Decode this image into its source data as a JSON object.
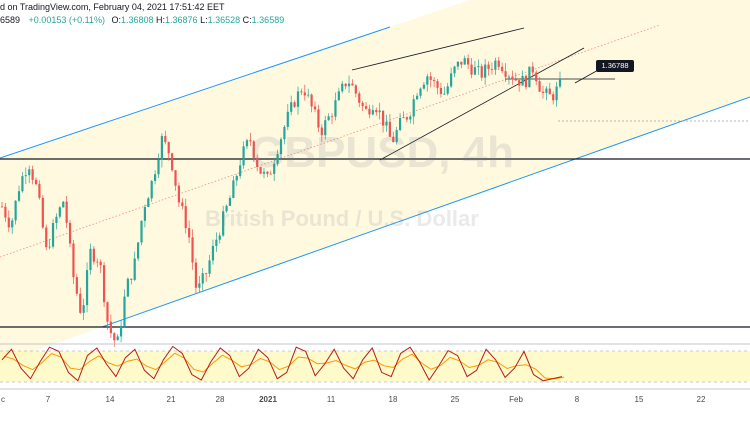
{
  "header": {
    "line1": "d on TradingView.com, February 04, 2021 17:51:42 EET",
    "price_prefix": "6589",
    "change": "+0.00153 (+0.11%)",
    "o_label": "O:",
    "o_value": "1.36808",
    "h_label": "H:",
    "h_value": "1.36876",
    "l_label": "L:",
    "l_value": "1.36528",
    "c_label": "C:",
    "c_value": "1.36589"
  },
  "watermark": {
    "symbol": "GBPUSD, 4h",
    "name": "British Pound / U.S. Dollar"
  },
  "annotations": {
    "price_label": "1.36788"
  },
  "colors": {
    "up_candle": "#26a69a",
    "down_candle": "#ef5350",
    "channel_line": "#2196f3",
    "channel_fill": "#fff9e0",
    "midline": "#f28b82",
    "stoch_band": "#fff59d",
    "stoch_k": "#b71c1c",
    "stoch_d": "#ff9800"
  },
  "chart_data": {
    "type": "candlestick",
    "x_ticks": [
      "c",
      "7",
      "14",
      "21",
      "28",
      "2021",
      "11",
      "18",
      "25",
      "Feb",
      "8",
      "15",
      "22"
    ],
    "price_path": [
      1.334,
      1.329,
      1.34,
      1.346,
      1.338,
      1.322,
      1.33,
      1.336,
      1.316,
      1.305,
      1.322,
      1.32,
      1.302,
      1.297,
      1.312,
      1.319,
      1.334,
      1.341,
      1.352,
      1.348,
      1.335,
      1.328,
      1.311,
      1.316,
      1.324,
      1.331,
      1.338,
      1.347,
      1.352,
      1.344,
      1.341,
      1.349,
      1.356,
      1.362,
      1.366,
      1.36,
      1.354,
      1.358,
      1.363,
      1.368,
      1.364,
      1.359,
      1.362,
      1.357,
      1.351,
      1.356,
      1.359,
      1.366,
      1.369,
      1.366,
      1.364,
      1.37,
      1.373,
      1.371,
      1.369,
      1.371,
      1.373,
      1.37,
      1.368,
      1.367,
      1.371,
      1.364,
      1.363,
      1.366
    ],
    "highlighted_level": 1.36788,
    "horizontal_levels": [
      1.341,
      1.302
    ],
    "indicator": {
      "name": "Stochastic",
      "band": [
        20,
        80
      ],
      "k_values": [
        60,
        85,
        40,
        15,
        55,
        90,
        80,
        30,
        10,
        70,
        88,
        50,
        20,
        65,
        85,
        35,
        15,
        60,
        92,
        75,
        25,
        12,
        55,
        88,
        70,
        20,
        40,
        85,
        65,
        15,
        30,
        90,
        80,
        22,
        50,
        85,
        40,
        15,
        60,
        88,
        30,
        20,
        75,
        90,
        55,
        12,
        45,
        82,
        70,
        20,
        35,
        85,
        60,
        18,
        40,
        80,
        25,
        10,
        15,
        20
      ]
    }
  }
}
